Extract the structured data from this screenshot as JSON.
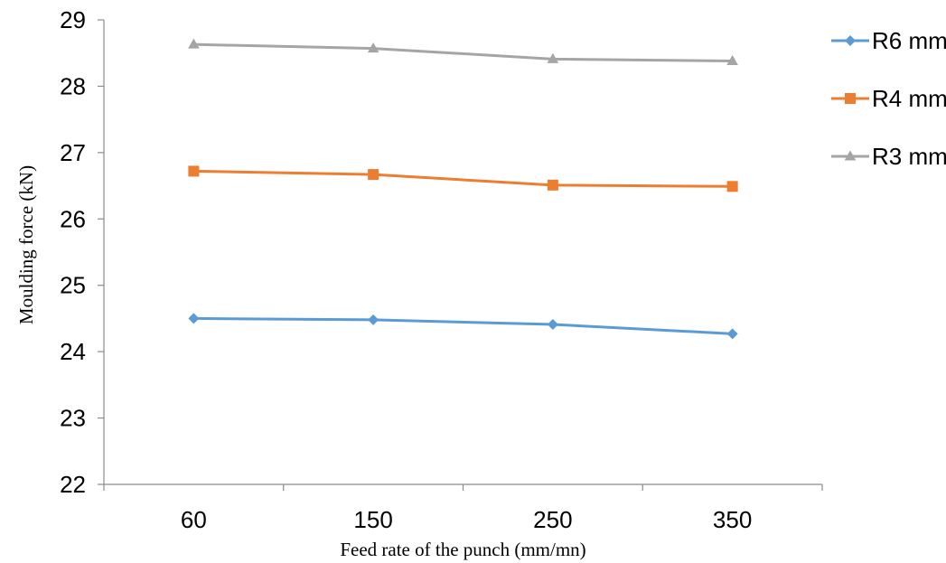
{
  "chart_data": {
    "type": "line",
    "title": "",
    "xlabel": "Feed rate of the punch (mm/mn)",
    "ylabel": "Moulding force (kN)",
    "categories": [
      "60",
      "150",
      "250",
      "350"
    ],
    "ylim": [
      22,
      29
    ],
    "yticks": [
      22,
      23,
      24,
      25,
      26,
      27,
      28,
      29
    ],
    "grid": false,
    "legend_position": "top-right",
    "series": [
      {
        "name": "R6 mm",
        "color": "#5B9BD5",
        "marker": "diamond",
        "values": [
          24.5,
          24.48,
          24.41,
          24.27
        ]
      },
      {
        "name": "R4 mm",
        "color": "#ED7D31",
        "marker": "square",
        "values": [
          26.72,
          26.67,
          26.51,
          26.49
        ]
      },
      {
        "name": "R3 mm",
        "color": "#A5A5A5",
        "marker": "triangle",
        "values": [
          28.63,
          28.57,
          28.41,
          28.38
        ]
      }
    ]
  }
}
